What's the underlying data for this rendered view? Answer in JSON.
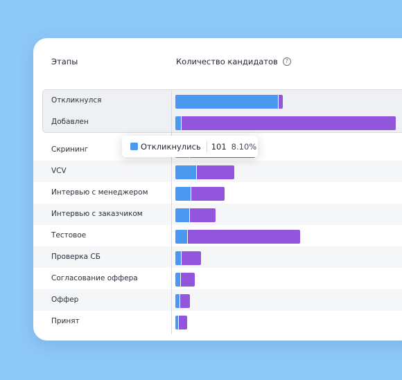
{
  "header": {
    "stage_label": "Этапы",
    "count_label": "Количество кандидатов",
    "help_icon": "question-circle-icon"
  },
  "colors": {
    "responded": "#4a98ef",
    "other": "#9455dd",
    "background": "#8ec8f8"
  },
  "tooltip": {
    "series": "Откликнулись",
    "value": "101",
    "percent": "8.10%"
  },
  "stages": [
    {
      "label": "Откликнулся",
      "responded": 148,
      "other": 7
    },
    {
      "label": "Добавлен",
      "responded": 8,
      "other": 310
    },
    {
      "label": "Скрининг",
      "responded": 20,
      "other": 95
    },
    {
      "label": "VCV",
      "responded": 30,
      "other": 55
    },
    {
      "label": "Интервью с менеджером",
      "responded": 22,
      "other": 49
    },
    {
      "label": "Интервью с заказчиком",
      "responded": 20,
      "other": 38
    },
    {
      "label": "Тестовое",
      "responded": 17,
      "other": 163
    },
    {
      "label": "Проверка СБ",
      "responded": 8,
      "other": 29
    },
    {
      "label": "Согласование оффера",
      "responded": 7,
      "other": 21
    },
    {
      "label": "Оффер",
      "responded": 6,
      "other": 15
    },
    {
      "label": "Принят",
      "responded": 4,
      "other": 13
    }
  ]
}
